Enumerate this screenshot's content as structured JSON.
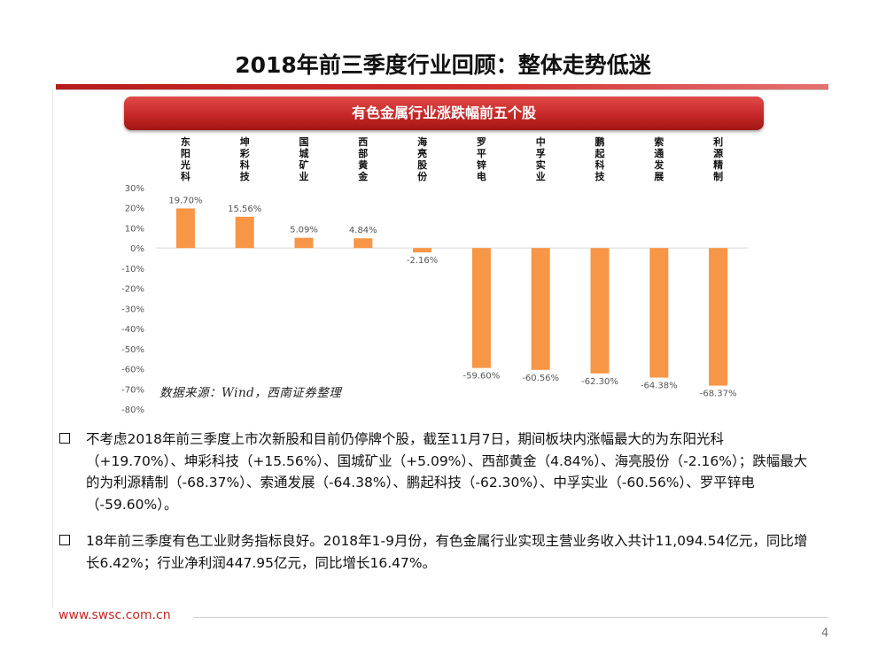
{
  "header": {
    "title": "2018年前三季度行业回顾：整体走势低迷"
  },
  "banner": {
    "label": "有色金属行业涨跌幅前五个股"
  },
  "chart_data": {
    "type": "bar",
    "title": "有色金属行业涨跌幅前五个股",
    "categories": [
      "东阳光科",
      "坤彩科技",
      "国城矿业",
      "西部黄金",
      "海亮股份",
      "罗平锌电",
      "中孚实业",
      "鹏起科技",
      "索通发展",
      "利源精制"
    ],
    "values": [
      19.7,
      15.56,
      5.09,
      4.84,
      -2.16,
      -59.6,
      -60.56,
      -62.3,
      -64.38,
      -68.37
    ],
    "value_labels": [
      "19.70%",
      "15.56%",
      "5.09%",
      "4.84%",
      "-2.16%",
      "-59.60%",
      "-60.56%",
      "-62.30%",
      "-64.38%",
      "-68.37%"
    ],
    "ylim": [
      -80,
      30
    ],
    "yticks": [
      30,
      20,
      10,
      0,
      -10,
      -20,
      -30,
      -40,
      -50,
      -60,
      -70,
      -80
    ],
    "ytick_labels": [
      "30%",
      "20%",
      "10%",
      "0%",
      "-10%",
      "-20%",
      "-30%",
      "-40%",
      "-50%",
      "-60%",
      "-70%",
      "-80%"
    ],
    "xlabel": "",
    "ylabel": "",
    "legend": "none",
    "grid": false,
    "bar_color": "#f79646"
  },
  "source_note": "数据来源：Wind，西南证券整理",
  "bullets": [
    "不考虑2018年前三季度上市次新股和目前仍停牌个股，截至11月7日，期间板块内涨幅最大的为东阳光科（+19.70%）、坤彩科技（+15.56%）、国城矿业（+5.09%）、西部黄金（4.84%）、海亮股份（-2.16%）；跌幅最大的为利源精制（-68.37%）、索通发展（-64.38%）、鹏起科技（-62.30%）、中孚实业（-60.56%）、罗平锌电（-59.60%）。",
    "18年前三季度有色工业财务指标良好。2018年1-9月份，有色金属行业实现主营业务收入共计11,094.54亿元，同比增长6.42%；行业净利润447.95亿元，同比增长16.47%。"
  ],
  "footer": {
    "url": "www.swsc.com.cn",
    "page_number": "4"
  },
  "colors": {
    "accent": "#c62828",
    "bar": "#f79646"
  }
}
